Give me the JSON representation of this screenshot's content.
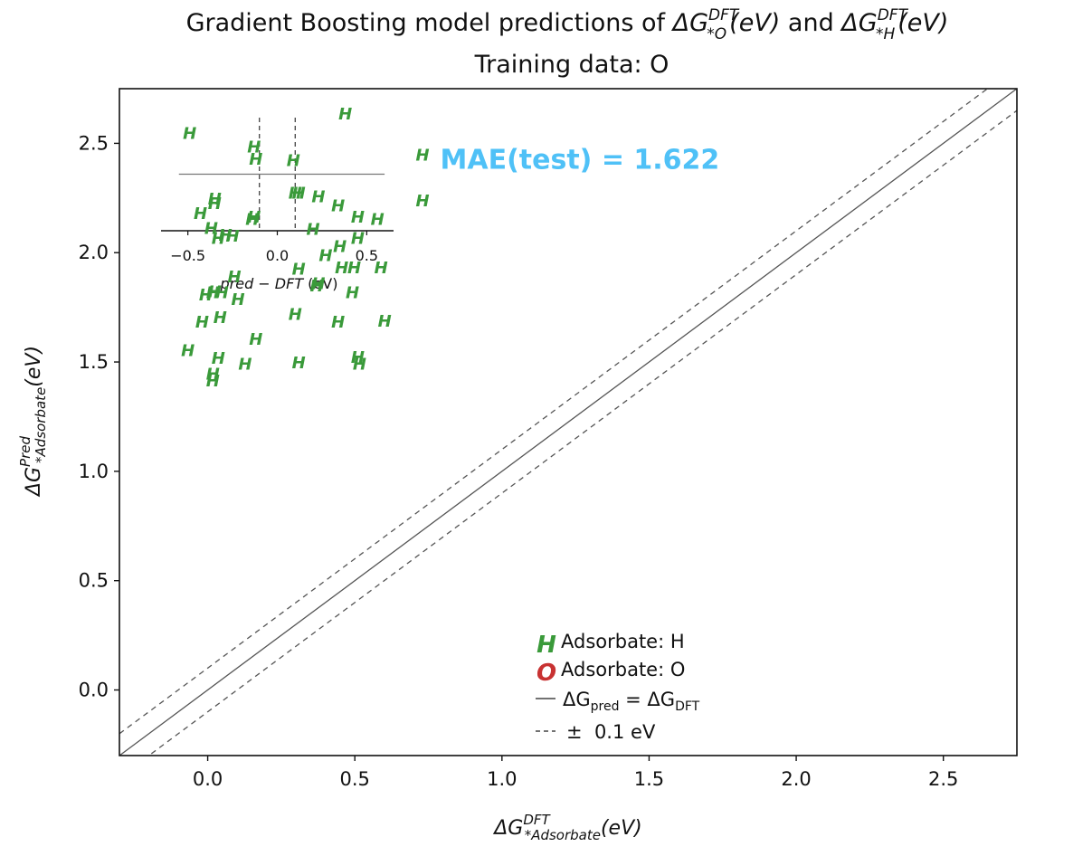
{
  "chart_data": [
    {
      "type": "scatter",
      "title": {
        "prefix": "Gradient Boosting model predictions of ",
        "termA": {
          "sym": "ΔG",
          "sub": "*O",
          "sup": "DFT",
          "unit": "(eV)"
        },
        "joiner": " and ",
        "termB": {
          "sym": "ΔG",
          "sub": "*H",
          "sup": "DFT",
          "unit": "(eV)"
        },
        "line2": "Training data: O"
      },
      "xlabel": {
        "sym": "ΔG",
        "sub": "*Adsorbate",
        "sup": "DFT",
        "unit": "(eV)"
      },
      "ylabel": {
        "sym": "ΔG",
        "sub": "*Adsorbate",
        "sup": "Pred",
        "unit": "(eV)"
      },
      "xlim": [
        -0.3,
        2.75
      ],
      "ylim": [
        -0.3,
        2.75
      ],
      "xticks": [
        "0.0",
        "0.5",
        "1.0",
        "1.5",
        "2.0",
        "2.5"
      ],
      "yticks": [
        "0.0",
        "0.5",
        "1.0",
        "1.5",
        "2.0",
        "2.5"
      ],
      "grid": false,
      "series": [
        {
          "name": "Adsorbate: H",
          "marker": "H",
          "color": "#3a9a3a",
          "points": [
            [
              0.73,
              2.45
            ],
            [
              0.73,
              2.24
            ]
          ]
        },
        {
          "name": "Adsorbate: O",
          "marker": "O",
          "color": "#c83232",
          "points": []
        }
      ],
      "lines": [
        {
          "label": "ΔGpred = ΔGDFT",
          "style": "solid",
          "offset": 0
        },
        {
          "label": "± 0.1 eV",
          "style": "dashed",
          "offset": 0.1
        },
        {
          "label": "",
          "style": "dashed",
          "offset": -0.1
        }
      ],
      "annotation": {
        "text": "MAE(test) = 1.622",
        "x": 0.79,
        "y": 2.43,
        "color": "#4fc1f7"
      },
      "legend": {
        "placement": "lower-center",
        "items": [
          {
            "marker": "H",
            "color": "#3a9a3a",
            "text": "Adsorbate: H"
          },
          {
            "marker": "O",
            "color": "#c83232",
            "text": "Adsorbate: O"
          },
          {
            "marker": "solid-line",
            "text": "ΔG",
            "sub1": "pred",
            "mid": " = ΔG",
            "sub2": "DFT"
          },
          {
            "marker": "dashed-line",
            "text": "±  0.1 eV"
          }
        ]
      }
    },
    {
      "type": "scatter",
      "role": "inset residual distribution",
      "xlabel": "pred − DFT (eV)",
      "xlabel_parts": {
        "it": "pred − DFT",
        "rest": " (eV)"
      },
      "xlim": [
        -0.65,
        0.65
      ],
      "ylim": [
        -1.6,
        1.0
      ],
      "xticks": [
        {
          "v": -0.5,
          "label": "−0.5"
        },
        {
          "v": 0.0,
          "label": "0.0"
        },
        {
          "v": 0.5,
          "label": "0.5"
        }
      ],
      "vlines": [
        -0.1,
        0.1
      ],
      "hline": 0.5,
      "marker": "H",
      "color": "#3a9a3a",
      "points": [
        [
          -0.49,
          0.87
        ],
        [
          -0.13,
          0.75
        ],
        [
          -0.12,
          0.64
        ],
        [
          0.09,
          0.63
        ],
        [
          0.38,
          1.04
        ],
        [
          -0.35,
          0.29
        ],
        [
          -0.35,
          0.25
        ],
        [
          0.1,
          0.34
        ],
        [
          0.12,
          0.34
        ],
        [
          0.23,
          0.31
        ],
        [
          0.34,
          0.23
        ],
        [
          -0.43,
          0.16
        ],
        [
          -0.14,
          0.11
        ],
        [
          -0.13,
          0.13
        ],
        [
          0.45,
          0.13
        ],
        [
          0.56,
          0.11
        ],
        [
          -0.37,
          0.03
        ],
        [
          -0.29,
          -0.03
        ],
        [
          -0.25,
          -0.04
        ],
        [
          0.2,
          0.02
        ],
        [
          -0.33,
          -0.06
        ],
        [
          0.35,
          -0.13
        ],
        [
          0.45,
          -0.06
        ],
        [
          0.27,
          -0.21
        ],
        [
          0.12,
          -0.33
        ],
        [
          0.36,
          -0.32
        ],
        [
          0.43,
          -0.32
        ],
        [
          0.58,
          -0.32
        ],
        [
          -0.24,
          -0.4
        ],
        [
          0.23,
          -0.46
        ],
        [
          0.22,
          -0.48
        ],
        [
          -0.36,
          -0.54
        ],
        [
          -0.35,
          -0.53
        ],
        [
          -0.4,
          -0.56
        ],
        [
          0.42,
          -0.54
        ],
        [
          -0.22,
          -0.6
        ],
        [
          -0.31,
          -0.54
        ],
        [
          0.1,
          -0.73
        ],
        [
          -0.32,
          -0.76
        ],
        [
          0.34,
          -0.8
        ],
        [
          0.6,
          -0.79
        ],
        [
          -0.42,
          -0.8
        ],
        [
          -0.12,
          -0.95
        ],
        [
          -0.5,
          -1.05
        ],
        [
          -0.33,
          -1.12
        ],
        [
          -0.18,
          -1.17
        ],
        [
          0.12,
          -1.16
        ],
        [
          0.45,
          -1.11
        ],
        [
          0.46,
          -1.17
        ],
        [
          -0.36,
          -1.26
        ],
        [
          -0.36,
          -1.32
        ]
      ]
    }
  ]
}
